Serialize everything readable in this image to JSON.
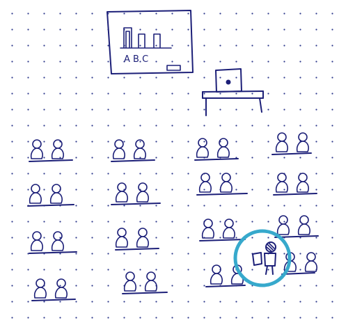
{
  "sketch": {
    "board_text": "A B C",
    "ink_color": "#1c1f78",
    "highlight_color": "#37a9cc",
    "student_rows": 4,
    "student_columns": 4,
    "students_per_desk": 2
  }
}
